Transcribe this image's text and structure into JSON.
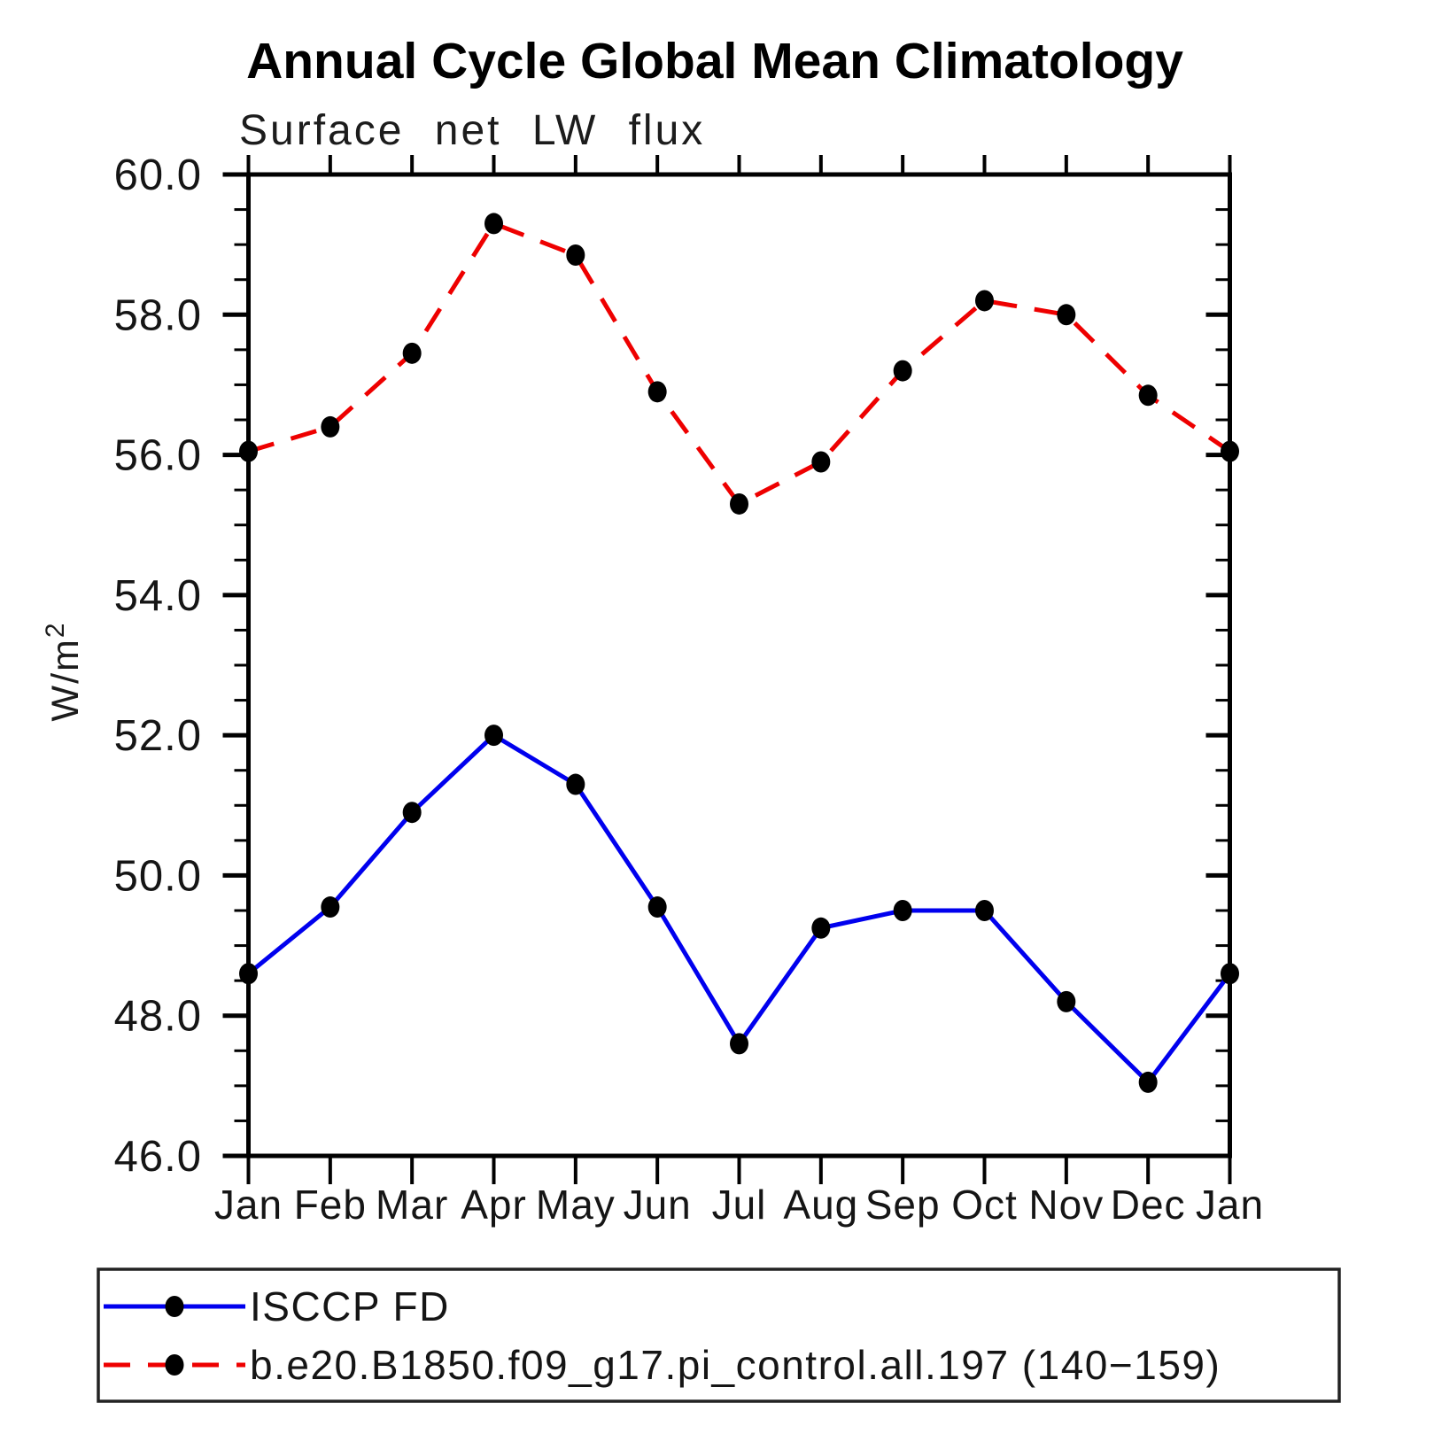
{
  "page": {
    "background_color": "#ffffff"
  },
  "chart_data": {
    "type": "line",
    "title": "Annual Cycle Global Mean Climatology",
    "subtitle": "Surface net LW flux",
    "ylabel_base": "W/m",
    "ylabel_sup": "2",
    "x_categories": [
      "Jan",
      "Feb",
      "Mar",
      "Apr",
      "May",
      "Jun",
      "Jul",
      "Aug",
      "Sep",
      "Oct",
      "Nov",
      "Dec",
      "Jan"
    ],
    "ylim": [
      46.0,
      60.0
    ],
    "ytick_major_interval": 2.0,
    "ytick_minor_interval": 0.5,
    "ytick_labels": [
      "46.0",
      "48.0",
      "50.0",
      "52.0",
      "54.0",
      "56.0",
      "58.0",
      "60.0"
    ],
    "grid": false,
    "legend_position": "bottom box",
    "axis_color": "#000000",
    "marker_color": "#000000",
    "series": [
      {
        "name": "ISCCP FD",
        "color": "#0000ee",
        "style": "solid",
        "marker": "filled-circle",
        "values": [
          48.6,
          49.55,
          50.9,
          52.0,
          51.3,
          49.55,
          47.6,
          49.25,
          49.5,
          49.5,
          48.2,
          47.05,
          48.6
        ]
      },
      {
        "name": "b.e20.B1850.f09_g17.pi_control.all.197 (140−159)",
        "color": "#ee0000",
        "style": "dashed",
        "marker": "filled-circle",
        "values": [
          56.05,
          56.4,
          57.45,
          59.3,
          58.85,
          56.9,
          55.3,
          55.9,
          57.2,
          58.2,
          58.0,
          56.85,
          56.05
        ]
      }
    ]
  }
}
